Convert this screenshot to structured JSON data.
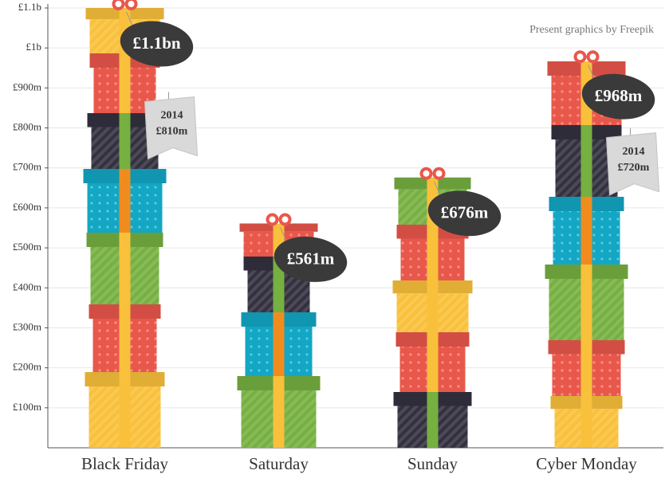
{
  "chart_data": {
    "type": "bar",
    "credit": "Present graphics by Freepik",
    "categories": [
      "Black Friday",
      "Saturday",
      "Sunday",
      "Cyber Monday"
    ],
    "values": [
      1100,
      561,
      676,
      968
    ],
    "value_labels": [
      "£1.1bn",
      "£561m",
      "£676m",
      "£968m"
    ],
    "previous": {
      "name": "2014",
      "values": [
        810,
        null,
        null,
        720
      ],
      "value_labels": [
        "£810m",
        null,
        null,
        "£720m"
      ]
    },
    "colors": [
      "#f9c03b",
      "#e9574b",
      "#76b041",
      "#12a7c4",
      "#33313f",
      "#e9574b"
    ],
    "ylim": [
      0,
      1100
    ],
    "yticks": [
      {
        "value": 100,
        "label": "£100m"
      },
      {
        "value": 200,
        "label": "£200m"
      },
      {
        "value": 300,
        "label": "£300m"
      },
      {
        "value": 400,
        "label": "£400m"
      },
      {
        "value": 500,
        "label": "£500m"
      },
      {
        "value": 600,
        "label": "£600m"
      },
      {
        "value": 700,
        "label": "£700m"
      },
      {
        "value": 800,
        "label": "£800m"
      },
      {
        "value": 900,
        "label": "£900m"
      },
      {
        "value": 1000,
        "label": "£1b"
      },
      {
        "value": 1100,
        "label": "£1.1b"
      }
    ],
    "grid": true
  }
}
